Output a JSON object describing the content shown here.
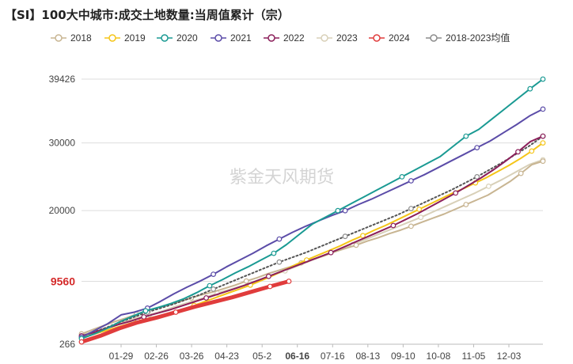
{
  "chart_data": {
    "type": "line",
    "title": "【SI】100大中城市:成交土地数量:当周值累计（宗）",
    "watermark": "紫金天风期货",
    "x_ticks": [
      "01-29",
      "02-26",
      "03-26",
      "04-23",
      "05-2",
      "06-16",
      "07-16",
      "08-13",
      "09-10",
      "10-08",
      "11-05",
      "12-03"
    ],
    "x_highlight": "06-16",
    "y_ticks": [
      266,
      20000,
      30000,
      39426
    ],
    "y_highlight": 9560,
    "ylim": [
      266,
      39426
    ],
    "legend_position": "top",
    "series": [
      {
        "name": "2018",
        "color": "#c8b592",
        "marker": true,
        "values": [
          1800,
          2400,
          3000,
          3600,
          4100,
          4700,
          5200,
          5700,
          6100,
          6600,
          7100,
          7600,
          8000,
          8500,
          9000,
          9600,
          10100,
          10700,
          11200,
          11700,
          12300,
          12800,
          13300,
          13900,
          14400,
          14900,
          15500,
          16000,
          16600,
          17100,
          17700,
          18300,
          18900,
          19500,
          20200,
          20900,
          21600,
          22300,
          23300,
          24300,
          25500,
          26800,
          27300
        ]
      },
      {
        "name": "2019",
        "color": "#f5c518",
        "marker": true,
        "values": [
          1200,
          1700,
          2200,
          2700,
          3200,
          3700,
          4100,
          4500,
          4900,
          5400,
          6000,
          6600,
          7200,
          7800,
          8400,
          9000,
          9700,
          10400,
          11200,
          12000,
          12700,
          13400,
          14100,
          14800,
          15600,
          16300,
          17100,
          17800,
          18600,
          19400,
          20200,
          21000,
          21800,
          22600,
          23300,
          24100,
          24900,
          25800,
          26700,
          27700,
          28800,
          30000
        ]
      },
      {
        "name": "2020",
        "color": "#1a9a93",
        "marker": true,
        "values": [
          1100,
          1800,
          2600,
          3600,
          4400,
          5200,
          5700,
          6300,
          7000,
          7900,
          8900,
          9800,
          10800,
          11700,
          12700,
          13700,
          15000,
          16500,
          18000,
          19000,
          20000,
          21000,
          22000,
          23000,
          24000,
          25000,
          26000,
          27000,
          28000,
          29500,
          31000,
          32000,
          33500,
          35000,
          36500,
          38000,
          39426
        ]
      },
      {
        "name": "2021",
        "color": "#5b4ca8",
        "marker": true,
        "values": [
          1300,
          2300,
          3300,
          4600,
          5000,
          5600,
          6600,
          7700,
          8700,
          9600,
          10600,
          11700,
          12700,
          13700,
          14800,
          15800,
          16800,
          17700,
          18500,
          19300,
          20000,
          20900,
          21700,
          22600,
          23500,
          24400,
          25300,
          26300,
          27300,
          28300,
          29300,
          30300,
          31500,
          32700,
          34000,
          35000
        ]
      },
      {
        "name": "2022",
        "color": "#8b1f5a",
        "marker": true,
        "values": [
          1500,
          2000,
          2600,
          3200,
          3700,
          4300,
          4800,
          5300,
          5900,
          6500,
          7100,
          7700,
          8300,
          8900,
          9600,
          10300,
          11000,
          11700,
          12400,
          13100,
          13800,
          14600,
          15400,
          16200,
          17000,
          17800,
          18700,
          19600,
          20600,
          21600,
          22600,
          23700,
          24800,
          26000,
          27300,
          28700,
          30200,
          31000
        ]
      },
      {
        "name": "2023",
        "color": "#d8d0b8",
        "marker": true,
        "values": [
          1600,
          2200,
          2800,
          3500,
          4100,
          4600,
          5200,
          5900,
          6500,
          7100,
          7800,
          8400,
          9000,
          9700,
          10400,
          11100,
          11900,
          12700,
          13400,
          14200,
          15000,
          15800,
          16600,
          17400,
          18200,
          19000,
          19900,
          20800,
          21700,
          22600,
          23600,
          24600,
          25700,
          26800,
          27500
        ]
      },
      {
        "name": "2024",
        "color": "#e03c3c",
        "marker": true,
        "values": [
          600,
          1500,
          2600,
          3500,
          4200,
          5000,
          5800,
          6500,
          7200,
          8000,
          8800,
          9560
        ]
      },
      {
        "name": "2018-2023均值",
        "color": "#8c8c8c",
        "marker": true,
        "dotted": true,
        "values": [
          1400,
          2100,
          2800,
          3600,
          4300,
          5000,
          5600,
          6200,
          6900,
          7600,
          8400,
          9200,
          10000,
          10800,
          11600,
          12400,
          13100,
          13800,
          14600,
          15400,
          16200,
          17000,
          17800,
          18600,
          19400,
          20300,
          21200,
          22100,
          23000,
          24000,
          25000,
          26100,
          27200,
          28400,
          29600,
          31000
        ]
      }
    ]
  }
}
